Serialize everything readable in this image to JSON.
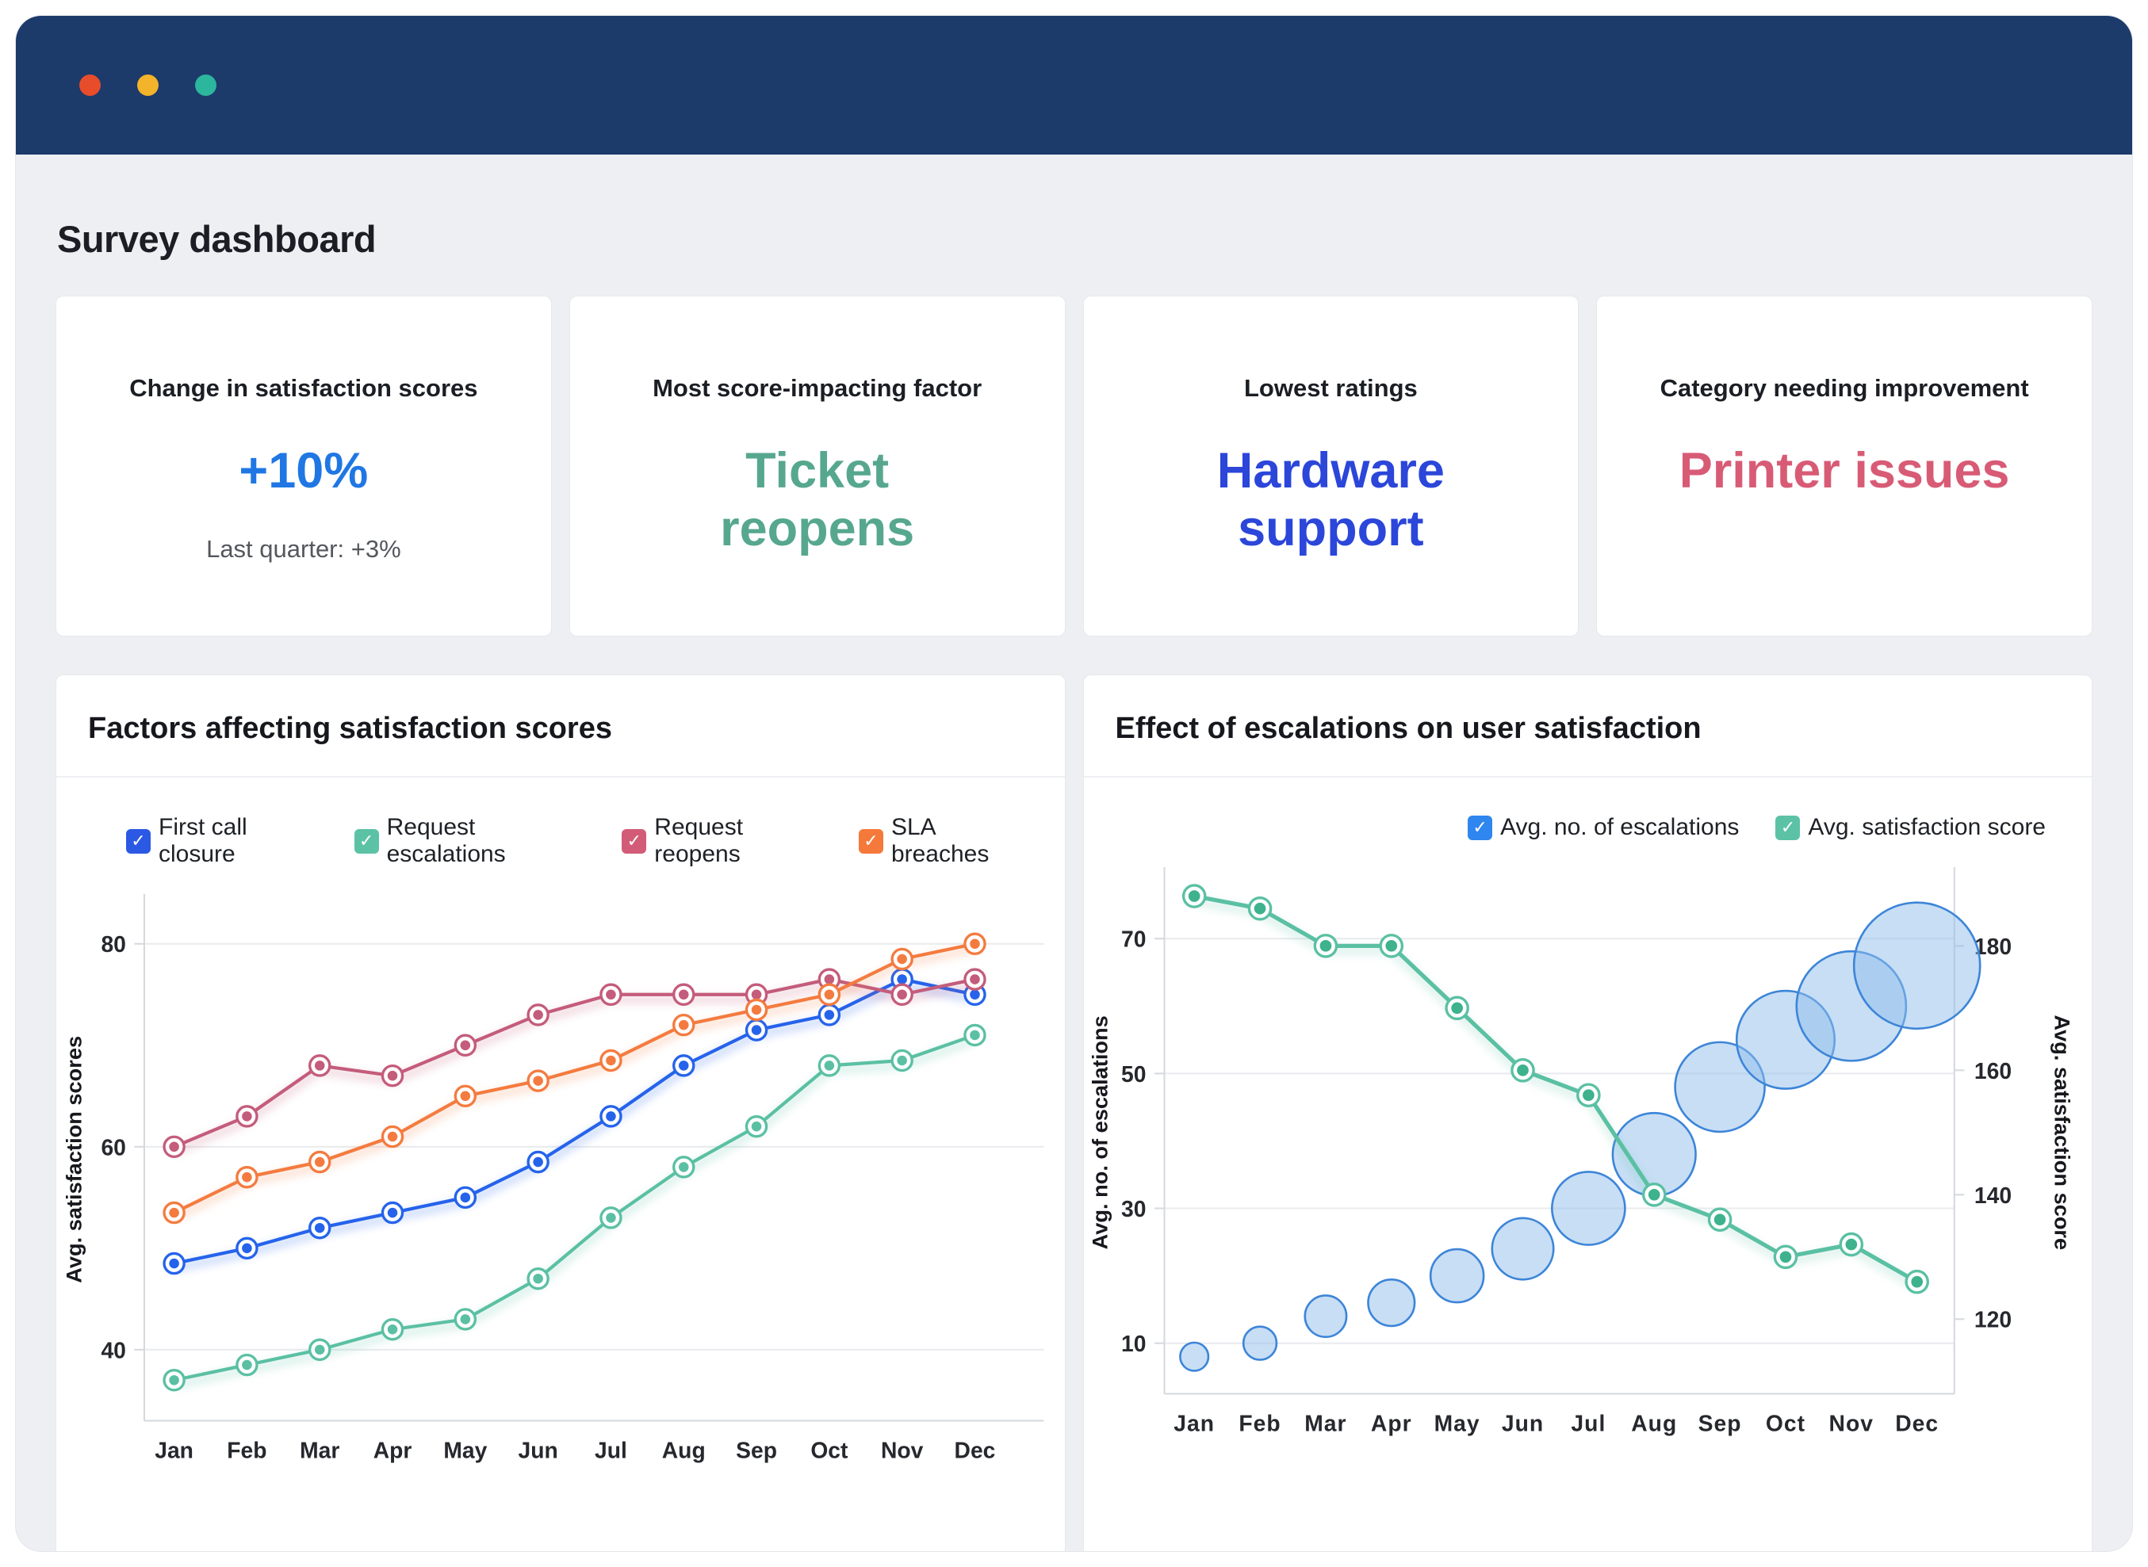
{
  "window": {
    "header_color": "#1c3a6a",
    "traffic_lights": [
      "#e74c2b",
      "#f3b32a",
      "#2cb69d"
    ]
  },
  "page": {
    "title": "Survey dashboard",
    "background": "#edeff2"
  },
  "kpis": [
    {
      "title": "Change in satisfaction scores",
      "value": "+10%",
      "value_color": "#2077e4",
      "subtext": "Last quarter: +3%"
    },
    {
      "title": "Most score-impacting factor",
      "value": "Ticket reopens",
      "value_color": "#57a78f",
      "subtext": ""
    },
    {
      "title": "Lowest ratings",
      "value": "Hardware support",
      "value_color": "#2b46d9",
      "subtext": ""
    },
    {
      "title": "Category needing improvement",
      "value": "Printer issues",
      "value_color": "#d85b76",
      "subtext": ""
    }
  ],
  "chart_data": [
    {
      "type": "line",
      "title": "Factors affecting satisfaction scores",
      "categories": [
        "Jan",
        "Feb",
        "Mar",
        "Apr",
        "May",
        "Jun",
        "Jul",
        "Aug",
        "Sep",
        "Oct",
        "Nov",
        "Dec"
      ],
      "series": [
        {
          "name": "First call closure",
          "swatch": "#2b59e3",
          "color": "#2563eb",
          "values": [
            48.5,
            50,
            52,
            53.5,
            55,
            58.5,
            63,
            68,
            71.5,
            73,
            76.5,
            75
          ]
        },
        {
          "name": "Request escalations",
          "swatch": "#5cc2a6",
          "color": "#5bc0a3",
          "values": [
            37,
            38.5,
            40,
            42,
            43,
            47,
            53,
            58,
            62,
            68,
            68.5,
            71
          ]
        },
        {
          "name": "Request reopens",
          "swatch": "#d25c77",
          "color": "#c45c7b",
          "values": [
            60,
            63,
            68,
            67,
            70,
            73,
            75,
            75,
            75,
            76.5,
            75,
            76.5
          ]
        },
        {
          "name": "SLA breaches",
          "swatch": "#f5793b",
          "color": "#f47b3f",
          "values": [
            53.5,
            57,
            58.5,
            61,
            65,
            66.5,
            68.5,
            72,
            73.5,
            75,
            78.5,
            80
          ]
        }
      ],
      "xlabel": "",
      "ylabel": "Avg. satisfaction scores",
      "yticks": [
        40,
        60,
        80
      ],
      "ylim": [
        33,
        84.5
      ],
      "grid": true,
      "legend_position": "top-left"
    },
    {
      "type": "bubble-line",
      "title": "Effect of escalations on user satisfaction",
      "categories": [
        "Jan",
        "Feb",
        "Mar",
        "Apr",
        "May",
        "Jun",
        "Jul",
        "Aug",
        "Sep",
        "Oct",
        "Nov",
        "Dec"
      ],
      "series": [
        {
          "name": "Avg. no. of escalations",
          "kind": "bubble",
          "axis": "left",
          "swatch": "#2e86ee",
          "color": "#3d85d8",
          "fill": "#90beeb",
          "values": [
            8,
            10,
            14,
            16,
            20,
            24,
            30,
            38,
            48,
            55,
            60,
            66
          ],
          "radii": [
            17,
            20,
            25,
            28,
            32,
            37,
            44,
            50,
            54,
            59,
            66,
            76
          ]
        },
        {
          "name": "Avg. satisfaction score",
          "kind": "line",
          "axis": "right",
          "swatch": "#5cc2a6",
          "color": "#5bc0a3",
          "values": [
            188,
            186,
            180,
            180,
            170,
            160,
            156,
            140,
            136,
            130,
            132,
            126
          ]
        }
      ],
      "left_axis": {
        "label": "Avg. no. of escalations",
        "ticks": [
          10,
          30,
          50,
          70
        ],
        "lim": [
          2.5,
          80
        ]
      },
      "right_axis": {
        "label": "Avg. satisfaction score",
        "ticks": [
          120,
          140,
          160,
          180
        ],
        "lim": [
          108,
          192
        ]
      },
      "grid": true,
      "legend_position": "top-right"
    }
  ]
}
